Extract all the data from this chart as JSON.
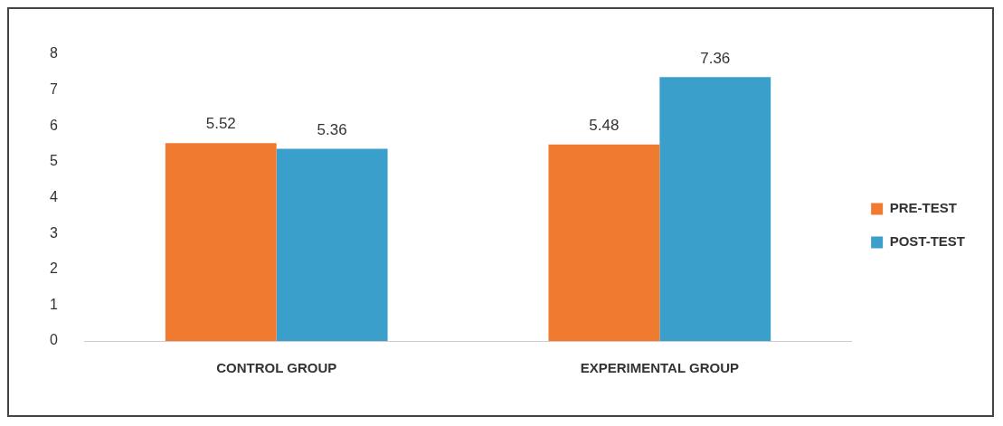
{
  "chart_data": {
    "type": "bar",
    "categories": [
      "CONTROL GROUP",
      "EXPERIMENTAL GROUP"
    ],
    "series": [
      {
        "name": "PRE-TEST",
        "color": "#f07b30",
        "values": [
          5.52,
          5.48
        ]
      },
      {
        "name": "POST-TEST",
        "color": "#3a9fcb",
        "values": [
          5.36,
          7.36
        ]
      }
    ],
    "ylim": [
      0,
      8
    ],
    "yticks": [
      0,
      1,
      2,
      3,
      4,
      5,
      6,
      7,
      8
    ],
    "grid": false,
    "legend": "right",
    "data_labels": true
  }
}
